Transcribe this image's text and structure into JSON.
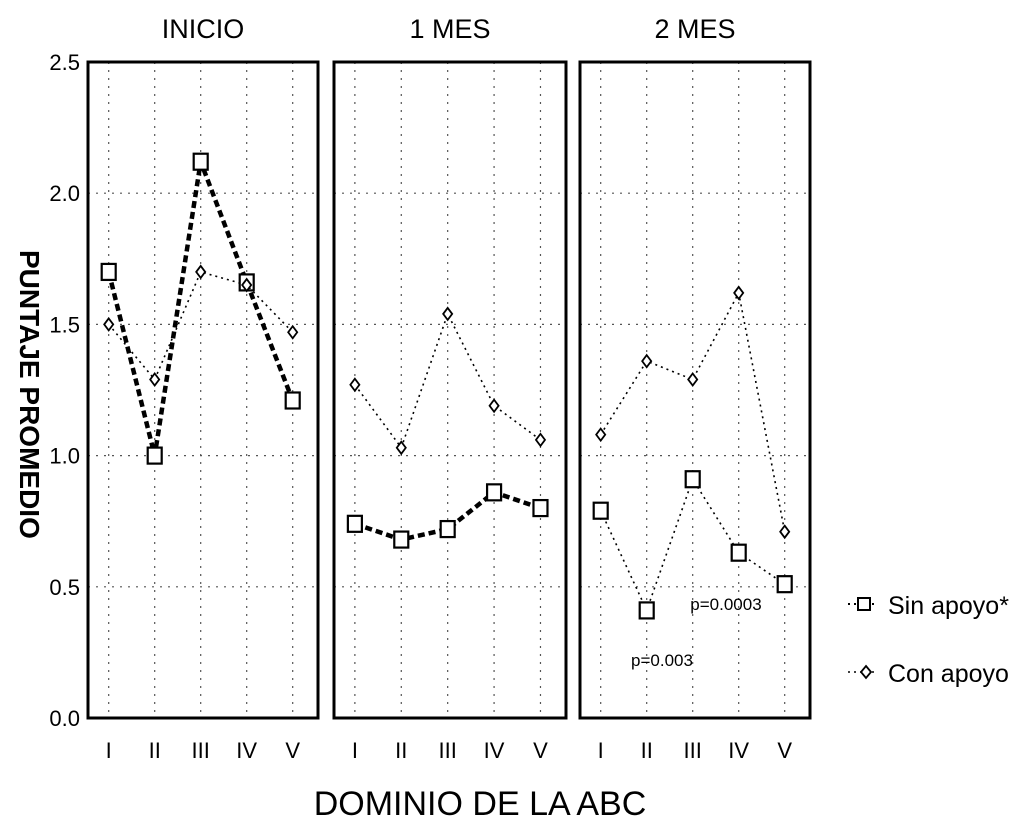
{
  "chart_data": {
    "type": "line",
    "ylabel": "PUNTAJE PROMEDIO",
    "xlabel": "DOMINIO DE LA ABC",
    "ylim": [
      0.0,
      2.5
    ],
    "yticks": [
      "0.0",
      "0.5",
      "1.0",
      "1.5",
      "2.0",
      "2.5"
    ],
    "categories": [
      "I",
      "II",
      "III",
      "IV",
      "V"
    ],
    "grid": true,
    "legend_position": "right",
    "legend": [
      {
        "label": "Sin apoyo*",
        "marker": "square"
      },
      {
        "label": "Con apoyo",
        "marker": "diamond"
      }
    ],
    "panels": [
      {
        "title": "INICIO",
        "series": [
          {
            "name": "Sin apoyo*",
            "values": [
              1.7,
              1.0,
              2.12,
              1.66,
              1.21
            ],
            "style": "thick-dashed"
          },
          {
            "name": "Con apoyo",
            "values": [
              1.5,
              1.29,
              1.7,
              1.65,
              1.47
            ],
            "style": "dotted"
          }
        ],
        "annotations": []
      },
      {
        "title": "1 MES",
        "series": [
          {
            "name": "Sin apoyo*",
            "values": [
              0.74,
              0.68,
              0.72,
              0.86,
              0.8
            ],
            "style": "thick-dashed"
          },
          {
            "name": "Con apoyo",
            "values": [
              1.27,
              1.03,
              1.54,
              1.19,
              1.06
            ],
            "style": "dotted"
          }
        ],
        "annotations": []
      },
      {
        "title": "2 MES",
        "series": [
          {
            "name": "Sin apoyo*",
            "values": [
              0.79,
              0.41,
              0.91,
              0.63,
              0.51
            ],
            "style": "dotted"
          },
          {
            "name": "Con apoyo",
            "values": [
              1.08,
              1.36,
              1.29,
              1.62,
              0.71
            ],
            "style": "dotted"
          }
        ],
        "annotations": [
          "p=0.0003",
          "p=0.003"
        ]
      }
    ]
  }
}
